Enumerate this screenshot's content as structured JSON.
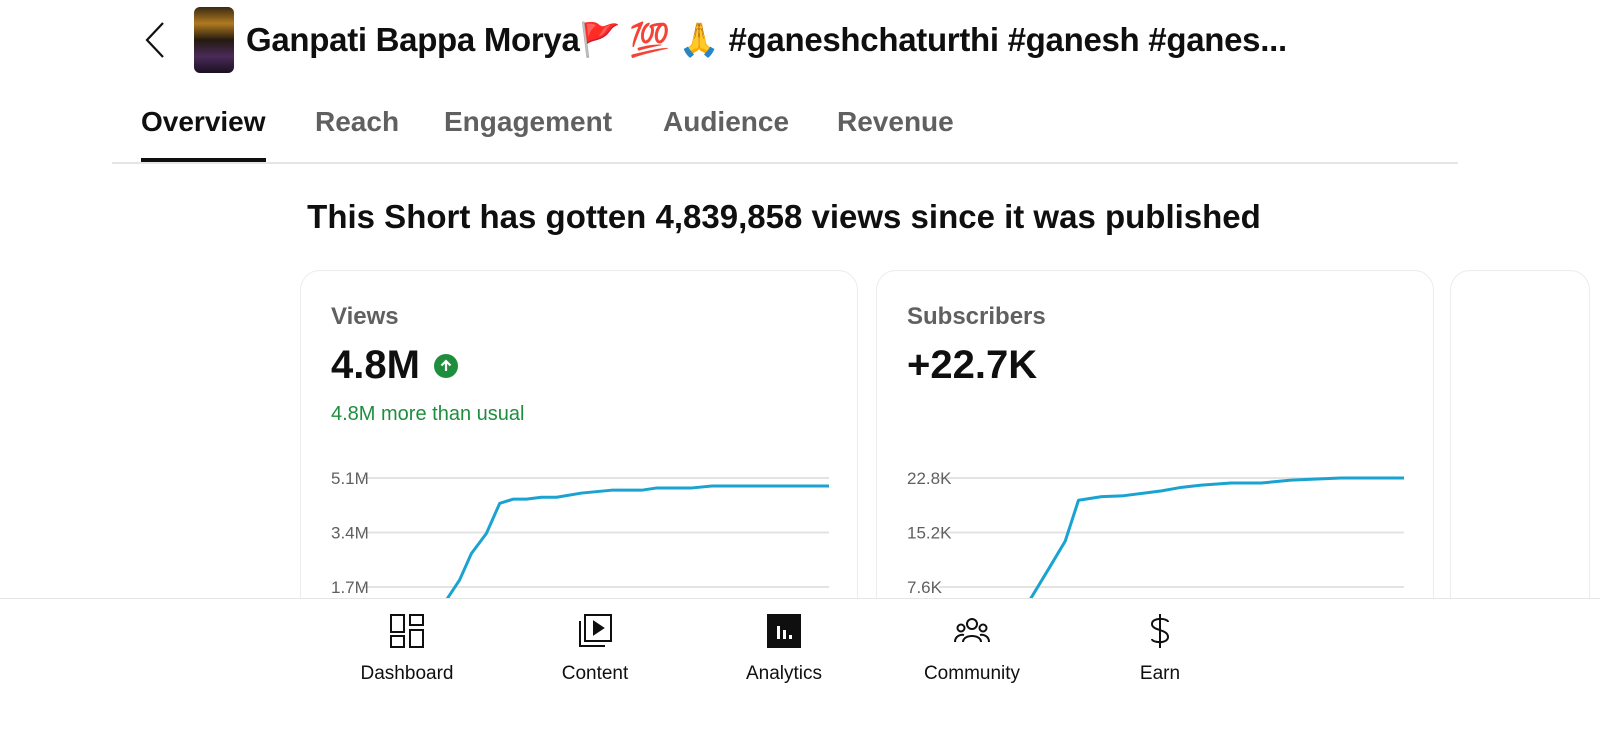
{
  "header": {
    "title": "Ganpati Bappa Morya🚩 💯 🙏 #ganeshchaturthi #ganesh #ganes..."
  },
  "tabs": [
    {
      "label": "Overview",
      "active": true
    },
    {
      "label": "Reach"
    },
    {
      "label": "Engagement"
    },
    {
      "label": "Audience"
    },
    {
      "label": "Revenue"
    }
  ],
  "headline": "This Short has gotten 4,839,858 views since it was published",
  "cards": [
    {
      "label": "Views",
      "value": "4.8M",
      "trend": "up",
      "delta": "4.8M more than usual"
    },
    {
      "label": "Subscribers",
      "value": "+22.7K"
    }
  ],
  "chart_data": [
    {
      "type": "line",
      "name": "Views",
      "color": "#1aa3d1",
      "yticks": [
        "5.1M",
        "3.4M",
        "1.7M"
      ],
      "ytick_values": [
        5.1,
        3.4,
        1.7
      ],
      "ylim_top": 5.1,
      "x": [
        5.1,
        5.9,
        6.6,
        7.5,
        8.3,
        9.1,
        9.9,
        10.8,
        11.7,
        13.2,
        15,
        16.8,
        17.7,
        19.8,
        21,
        28
      ],
      "y": [
        1.29,
        1.92,
        2.74,
        3.37,
        4.31,
        4.44,
        4.44,
        4.5,
        4.5,
        4.63,
        4.72,
        4.72,
        4.79,
        4.79,
        4.85,
        4.85
      ]
    },
    {
      "type": "line",
      "name": "Subscribers",
      "color": "#1aa3d1",
      "yticks": [
        "22.8K",
        "15.2K",
        "7.6K"
      ],
      "ytick_values": [
        22.8,
        15.2,
        7.6
      ],
      "ylim_top": 22.8,
      "x": [
        5.5,
        6.7,
        7.6,
        8.4,
        9.8,
        11,
        13.4,
        14.6,
        15.8,
        17.6,
        19.4,
        21.2,
        24.2,
        28
      ],
      "y": [
        5.9,
        10.5,
        14.0,
        19.7,
        20.2,
        20.3,
        21.0,
        21.5,
        21.8,
        22.1,
        22.1,
        22.5,
        22.8,
        22.8
      ]
    }
  ],
  "nav": [
    {
      "label": "Dashboard"
    },
    {
      "label": "Content"
    },
    {
      "label": "Analytics",
      "active": true
    },
    {
      "label": "Community"
    },
    {
      "label": "Earn"
    }
  ]
}
